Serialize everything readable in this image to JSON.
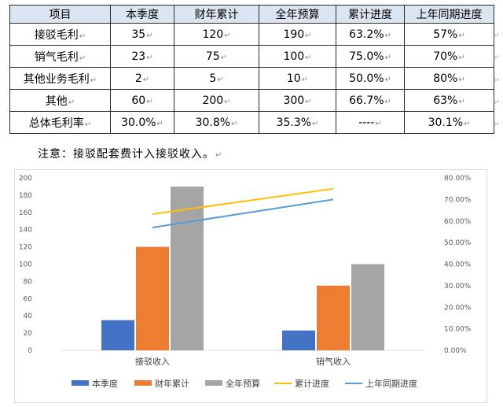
{
  "table": {
    "headers": [
      "项目",
      "本季度",
      "财年累计",
      "全年预算",
      "累计进度",
      "上年同期进度"
    ],
    "rows": [
      [
        "接驳毛利",
        "35",
        "120",
        "190",
        "63.2%",
        "57%"
      ],
      [
        "销气毛利",
        "23",
        "75",
        "100",
        "75.0%",
        "70%"
      ],
      [
        "其他业务毛利",
        "2",
        "5",
        "10",
        "50.0%",
        "80%"
      ],
      [
        "其他",
        "60",
        "200",
        "300",
        "66.7%",
        "63%"
      ],
      [
        "总体毛利率",
        "30.0%",
        "30.8%",
        "35.3%",
        "----",
        "30.1%"
      ]
    ]
  },
  "note": "注意：接驳配套费计入接驳收入。",
  "chart_data": {
    "type": "bar",
    "categories": [
      "接驳收入",
      "销气收入"
    ],
    "series": [
      {
        "name": "本季度",
        "kind": "bar",
        "axis": "left",
        "color": "#4472c4",
        "values": [
          35,
          23
        ]
      },
      {
        "name": "财年累计",
        "kind": "bar",
        "axis": "left",
        "color": "#ed7d31",
        "values": [
          120,
          75
        ]
      },
      {
        "name": "全年预算",
        "kind": "bar",
        "axis": "left",
        "color": "#a5a5a5",
        "values": [
          190,
          100
        ]
      },
      {
        "name": "累计进度",
        "kind": "line",
        "axis": "right",
        "color": "#ffc000",
        "values": [
          0.632,
          0.75
        ]
      },
      {
        "name": "上年同期进度",
        "kind": "line",
        "axis": "right",
        "color": "#5b9bd5",
        "values": [
          0.57,
          0.7
        ]
      }
    ],
    "left_axis": {
      "min": 0,
      "max": 200,
      "step": 20,
      "tick_labels": [
        "0",
        "20",
        "40",
        "60",
        "80",
        "100",
        "120",
        "140",
        "160",
        "180",
        "200"
      ]
    },
    "right_axis": {
      "min": 0,
      "max": 0.8,
      "step": 0.1,
      "tick_labels": [
        "0.00%",
        "10.00%",
        "20.00%",
        "30.00%",
        "40.00%",
        "50.00%",
        "60.00%",
        "70.00%",
        "80.00%"
      ]
    },
    "grid": false,
    "legend_position": "bottom"
  }
}
